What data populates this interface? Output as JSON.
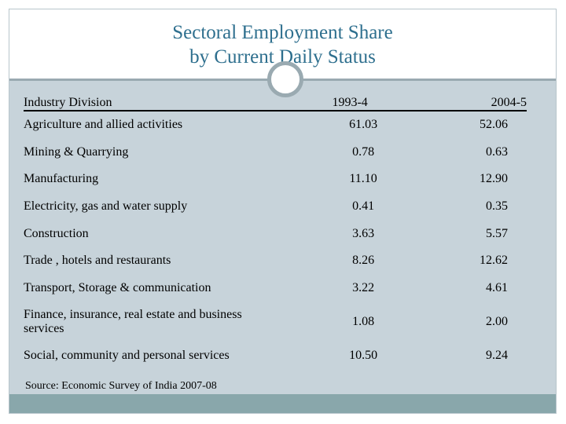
{
  "slide": {
    "title_line1": "Sectoral Employment Share",
    "title_line2": "by Current Daily Status"
  },
  "table": {
    "headers": [
      "Industry Division",
      "1993-4",
      "2004-5"
    ],
    "rows": [
      {
        "industry": "Agriculture and allied activities",
        "y1993_4": "61.03",
        "y2004_5": "52.06"
      },
      {
        "industry": "Mining & Quarrying",
        "y1993_4": "0.78",
        "y2004_5": "0.63"
      },
      {
        "industry": "Manufacturing",
        "y1993_4": "11.10",
        "y2004_5": "12.90"
      },
      {
        "industry": "Electricity, gas and water supply",
        "y1993_4": "0.41",
        "y2004_5": "0.35"
      },
      {
        "industry": "Construction",
        "y1993_4": "3.63",
        "y2004_5": "5.57"
      },
      {
        "industry": "Trade , hotels and restaurants",
        "y1993_4": "8.26",
        "y2004_5": "12.62"
      },
      {
        "industry": "Transport, Storage & communication",
        "y1993_4": "3.22",
        "y2004_5": "4.61"
      },
      {
        "industry": "Finance, insurance, real estate and business services",
        "y1993_4": "1.08",
        "y2004_5": "2.00"
      },
      {
        "industry": "Social, community and personal services",
        "y1993_4": "10.50",
        "y2004_5": "9.24"
      }
    ]
  },
  "source": "Source:  Economic Survey of India 2007-08"
}
